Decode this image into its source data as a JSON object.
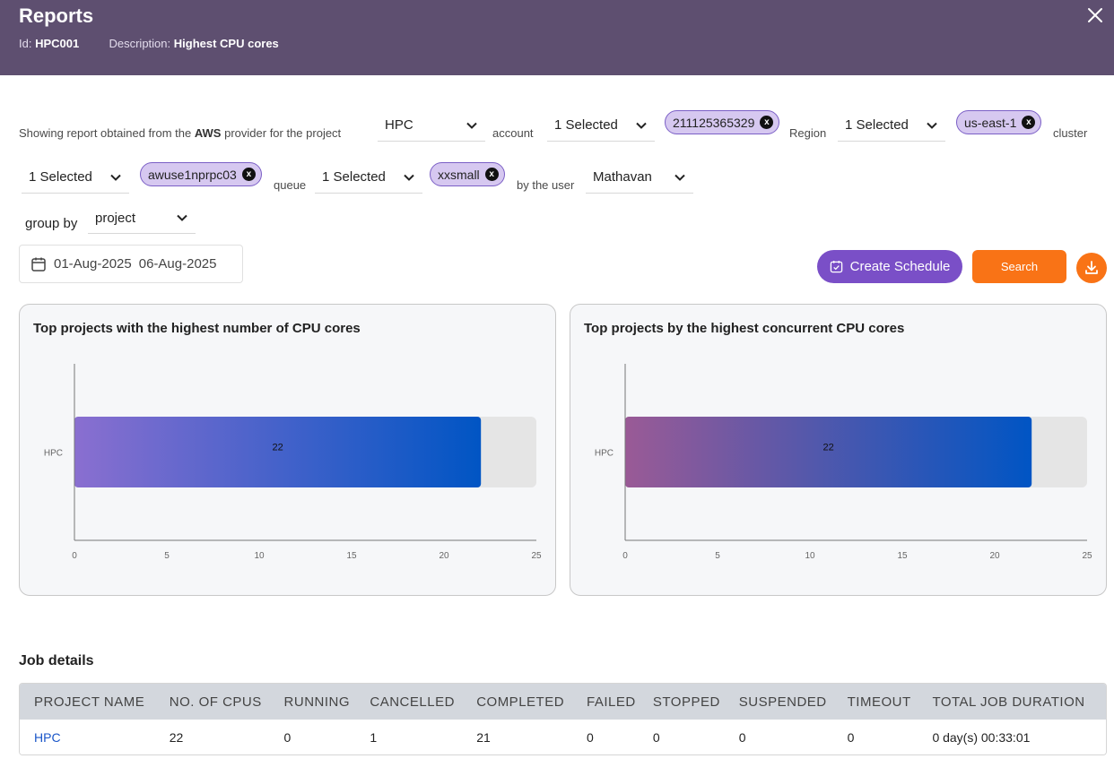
{
  "header": {
    "title": "Reports",
    "id_label": "Id:",
    "id_value": "HPC001",
    "desc_label": "Description:",
    "desc_value": "Highest CPU cores"
  },
  "filters": {
    "intro_prefix": "Showing report obtained from the",
    "provider": "AWS",
    "intro_suffix": "provider for the project",
    "project": "HPC",
    "account_label": "account",
    "account_select": "1 Selected",
    "account_chip": "211125365329",
    "region_label": "Region",
    "region_select": "1 Selected",
    "region_chip": "us-east-1",
    "cluster_label": "cluster",
    "cluster_select": "1 Selected",
    "cluster_chip": "awuse1nprpc03",
    "queue_label": "queue",
    "queue_select": "1 Selected",
    "queue_chip": "xxsmall",
    "user_label": "by the user",
    "user": "Mathavan",
    "groupby_label": "group by",
    "groupby": "project",
    "chip_close": "x"
  },
  "dates": {
    "start": "01-Aug-2025",
    "end": "06-Aug-2025"
  },
  "actions": {
    "create_schedule": "Create Schedule",
    "search": "Search"
  },
  "chart_data": [
    {
      "type": "bar",
      "orientation": "horizontal",
      "title": "Top projects with the highest number of CPU cores",
      "categories": [
        "HPC"
      ],
      "values": [
        22
      ],
      "xlim": [
        0,
        25
      ],
      "xticks": [
        0,
        5,
        10,
        15,
        20,
        25
      ],
      "colors": [
        "#8a6fd0",
        "#0055c4"
      ]
    },
    {
      "type": "bar",
      "orientation": "horizontal",
      "title": "Top projects by the highest concurrent CPU cores",
      "categories": [
        "HPC"
      ],
      "values": [
        22
      ],
      "xlim": [
        0,
        25
      ],
      "xticks": [
        0,
        5,
        10,
        15,
        20,
        25
      ],
      "colors": [
        "#9a5a96",
        "#0055c4"
      ]
    }
  ],
  "jobs": {
    "title": "Job details",
    "columns": [
      "PROJECT NAME",
      "NO. OF CPUS",
      "RUNNING",
      "CANCELLED",
      "COMPLETED",
      "FAILED",
      "STOPPED",
      "SUSPENDED",
      "TIMEOUT",
      "TOTAL JOB DURATION"
    ],
    "rows": [
      [
        "HPC",
        "22",
        "0",
        "1",
        "21",
        "0",
        "0",
        "0",
        "0",
        "0 day(s) 00:33:01"
      ]
    ]
  }
}
